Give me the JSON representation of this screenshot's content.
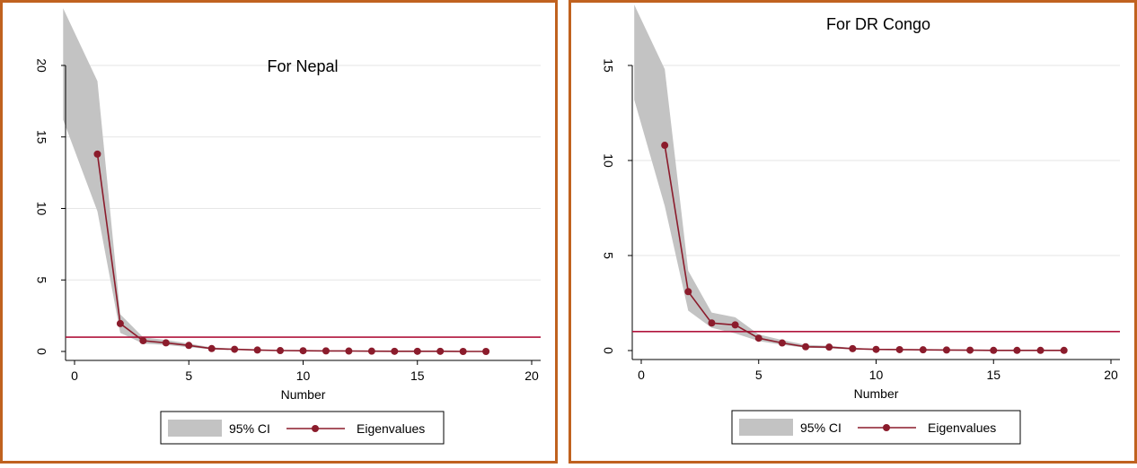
{
  "colors": {
    "frame": "#c0621f",
    "ci_fill": "#c3c3c3",
    "eigen_line": "#8b1c2c",
    "ref_line": "#b0143c",
    "grid": "#e6e6e6"
  },
  "chart_data": [
    {
      "type": "line",
      "title": "For Nepal",
      "xlabel": "Number",
      "ylabel": "",
      "xlim": [
        0,
        20
      ],
      "ylim": [
        0,
        20
      ],
      "xticks": [
        0,
        5,
        10,
        15,
        20
      ],
      "yticks": [
        0,
        5,
        10,
        15,
        20
      ],
      "grid": true,
      "reference_line_y": 1,
      "legend_position": "bottom",
      "legend": [
        "95% CI",
        "Eigenvalues"
      ],
      "x": [
        1,
        2,
        3,
        4,
        5,
        6,
        7,
        8,
        9,
        10,
        11,
        12,
        13,
        14,
        15,
        16,
        17,
        18
      ],
      "series": [
        {
          "name": "Eigenvalues",
          "values": [
            13.8,
            1.95,
            0.75,
            0.6,
            0.42,
            0.2,
            0.15,
            0.1,
            0.06,
            0.05,
            0.04,
            0.03,
            0.02,
            0.01,
            0.01,
            0.01,
            0.0,
            0.0
          ]
        }
      ],
      "ci": {
        "name": "95% CI",
        "x": [
          -0.5,
          1,
          2,
          3,
          4,
          5,
          6,
          7,
          8,
          9,
          10,
          11,
          12,
          13,
          14,
          15,
          16,
          17,
          18
        ],
        "lower": [
          16.2,
          9.8,
          1.3,
          0.55,
          0.45,
          0.3,
          0.15,
          0.1,
          0.07,
          0.04,
          0.03,
          0.02,
          0.01,
          0.01,
          0.0,
          0.0,
          0.0,
          0.0,
          0.0
        ],
        "upper": [
          24.0,
          18.9,
          2.6,
          1.0,
          0.8,
          0.55,
          0.28,
          0.2,
          0.14,
          0.08,
          0.07,
          0.06,
          0.05,
          0.04,
          0.03,
          0.03,
          0.02,
          0.02,
          0.02
        ]
      }
    },
    {
      "type": "line",
      "title": "For DR Congo",
      "xlabel": "Number",
      "ylabel": "",
      "xlim": [
        0,
        20
      ],
      "ylim": [
        0,
        15
      ],
      "xticks": [
        0,
        5,
        10,
        15,
        20
      ],
      "yticks": [
        0,
        5,
        10,
        15
      ],
      "grid": true,
      "reference_line_y": 1,
      "legend_position": "bottom",
      "legend": [
        "95% CI",
        "Eigenvalues"
      ],
      "x": [
        1,
        2,
        3,
        4,
        5,
        6,
        7,
        8,
        9,
        10,
        11,
        12,
        13,
        14,
        15,
        16,
        17,
        18
      ],
      "series": [
        {
          "name": "Eigenvalues",
          "values": [
            10.8,
            3.1,
            1.45,
            1.35,
            0.65,
            0.4,
            0.2,
            0.18,
            0.1,
            0.06,
            0.05,
            0.04,
            0.03,
            0.02,
            0.01,
            0.01,
            0.01,
            0.01
          ]
        }
      ],
      "ci": {
        "name": "95% CI",
        "x": [
          -0.3,
          1,
          2,
          3,
          4,
          5,
          6,
          7,
          8,
          9,
          10,
          11,
          12,
          13,
          14,
          15,
          16,
          17,
          18
        ],
        "lower": [
          13.2,
          7.6,
          2.1,
          1.2,
          0.9,
          0.5,
          0.3,
          0.15,
          0.12,
          0.06,
          0.04,
          0.03,
          0.02,
          0.01,
          0.01,
          0.0,
          0.0,
          0.0,
          0.0
        ],
        "upper": [
          18.2,
          14.8,
          4.2,
          2.0,
          1.75,
          0.85,
          0.55,
          0.3,
          0.25,
          0.14,
          0.09,
          0.07,
          0.06,
          0.05,
          0.04,
          0.03,
          0.03,
          0.02,
          0.02
        ]
      }
    }
  ]
}
